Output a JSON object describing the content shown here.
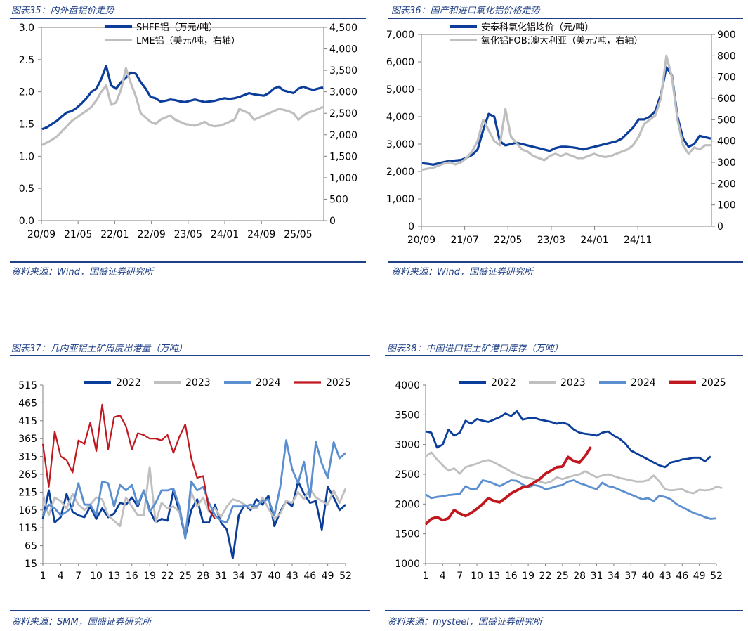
{
  "panels": [
    {
      "title": "图表35：内外盘铝价走势",
      "source": "资料来源：Wind，国盛证券研究所"
    },
    {
      "title": "图表36：国产和进口氧化铝价格走势",
      "source": "资料来源：Wind，国盛证券研究所"
    },
    {
      "title": "图表37：几内亚铝土矿周度出港量（万吨）",
      "source": "资料来源：SMM，国盛证券研究所"
    },
    {
      "title": "图表38：中国进口铝土矿港口库存（万吨）",
      "source": "资料来源：mysteel，国盛证券研究所"
    }
  ],
  "colors": {
    "navy": "#0b3d9a",
    "gray": "#bfbfbf",
    "mid_blue": "#5b8fd0",
    "red": "#c0181e",
    "frame": "#1f3f86"
  },
  "chart_data": [
    {
      "type": "line",
      "title": "内外盘铝价走势",
      "x_ticks": [
        "20/09",
        "21/05",
        "22/01",
        "22/09",
        "23/05",
        "24/01",
        "24/09",
        "25/05"
      ],
      "ylim": [
        0,
        3.0
      ],
      "y_ticks": [
        "0.0",
        "0.5",
        "1.0",
        "1.5",
        "2.0",
        "2.5",
        "3.0"
      ],
      "ylim_right": [
        0,
        4500
      ],
      "y_ticks_right": [
        "0",
        "500",
        "1,000",
        "1,500",
        "2,000",
        "2,500",
        "3,000",
        "3,500",
        "4,000",
        "4,500"
      ],
      "series": [
        {
          "name": "SHFE铝（万元/吨）",
          "axis": "left",
          "color": "#0b3d9a",
          "values": [
            1.42,
            1.45,
            1.5,
            1.55,
            1.62,
            1.68,
            1.7,
            1.75,
            1.82,
            1.9,
            2.0,
            2.05,
            2.2,
            2.4,
            2.1,
            2.05,
            2.15,
            2.22,
            2.3,
            2.28,
            2.15,
            2.05,
            1.92,
            1.9,
            1.85,
            1.86,
            1.88,
            1.87,
            1.85,
            1.84,
            1.86,
            1.88,
            1.86,
            1.84,
            1.85,
            1.86,
            1.88,
            1.9,
            1.89,
            1.9,
            1.92,
            1.95,
            1.98,
            1.96,
            1.95,
            1.94,
            1.98,
            2.05,
            2.08,
            2.02,
            2.0,
            1.98,
            2.05,
            2.08,
            2.05,
            2.03,
            2.05,
            2.07
          ]
        },
        {
          "name": "LME铝（美元/吨，右轴）",
          "axis": "right",
          "color": "#bfbfbf",
          "values": [
            1760,
            1820,
            1880,
            1960,
            2080,
            2200,
            2320,
            2400,
            2480,
            2560,
            2650,
            2800,
            3000,
            3150,
            2700,
            2750,
            3050,
            3550,
            3200,
            2900,
            2500,
            2400,
            2300,
            2250,
            2350,
            2400,
            2450,
            2350,
            2300,
            2250,
            2230,
            2210,
            2250,
            2300,
            2220,
            2200,
            2210,
            2250,
            2300,
            2350,
            2600,
            2550,
            2500,
            2350,
            2400,
            2450,
            2500,
            2550,
            2600,
            2580,
            2550,
            2500,
            2350,
            2450,
            2520,
            2550,
            2600,
            2650
          ]
        }
      ]
    },
    {
      "type": "line",
      "title": "国产和进口氧化铝价格走势",
      "x_ticks": [
        "20/09",
        "21/07",
        "22/05",
        "23/03",
        "24/01",
        "24/11"
      ],
      "ylim": [
        0,
        7000
      ],
      "y_ticks": [
        "0",
        "1,000",
        "2,000",
        "3,000",
        "4,000",
        "5,000",
        "6,000",
        "7,000"
      ],
      "ylim_right": [
        0,
        900
      ],
      "y_ticks_right": [
        "0",
        "100",
        "200",
        "300",
        "400",
        "500",
        "600",
        "700",
        "800",
        "900"
      ],
      "series": [
        {
          "name": "安泰科氧化铝均价（元/吨）",
          "axis": "left",
          "color": "#0b3d9a",
          "values": [
            2300,
            2280,
            2250,
            2300,
            2350,
            2380,
            2400,
            2420,
            2500,
            2600,
            2800,
            3500,
            4100,
            4000,
            3100,
            2950,
            3000,
            3050,
            3000,
            2950,
            2900,
            2850,
            2800,
            2750,
            2850,
            2900,
            2900,
            2880,
            2850,
            2800,
            2850,
            2900,
            2950,
            3000,
            3050,
            3100,
            3200,
            3400,
            3600,
            3900,
            3900,
            4000,
            4200,
            4800,
            5800,
            5500,
            4000,
            3200,
            2900,
            3000,
            3300,
            3250,
            3200
          ]
        },
        {
          "name": "氧化铝FOB:澳大利亚（美元/吨，右轴）",
          "axis": "right",
          "color": "#bfbfbf",
          "values": [
            265,
            270,
            275,
            285,
            295,
            300,
            290,
            300,
            320,
            350,
            400,
            500,
            450,
            400,
            380,
            550,
            420,
            390,
            360,
            350,
            330,
            320,
            310,
            330,
            340,
            330,
            340,
            330,
            320,
            320,
            330,
            340,
            330,
            325,
            330,
            340,
            350,
            360,
            380,
            420,
            480,
            500,
            520,
            600,
            800,
            700,
            500,
            380,
            340,
            370,
            360,
            380,
            380
          ]
        }
      ]
    },
    {
      "type": "line",
      "title": "几内亚铝土矿周度出港量（万吨）",
      "x_ticks": [
        "1",
        "4",
        "7",
        "10",
        "13",
        "16",
        "19",
        "22",
        "25",
        "28",
        "31",
        "34",
        "37",
        "40",
        "43",
        "46",
        "49",
        "52"
      ],
      "ylim": [
        15,
        515
      ],
      "y_ticks": [
        "15",
        "65",
        "115",
        "165",
        "215",
        "265",
        "315",
        "365",
        "415",
        "465",
        "515"
      ],
      "series": [
        {
          "name": "2022",
          "color": "#0b3d9a",
          "values": [
            140,
            220,
            130,
            145,
            210,
            160,
            150,
            145,
            175,
            140,
            170,
            145,
            155,
            185,
            180,
            200,
            175,
            220,
            165,
            130,
            140,
            135,
            220,
            160,
            90,
            165,
            195,
            130,
            130,
            180,
            130,
            110,
            30,
            150,
            180,
            165,
            195,
            180,
            205,
            120,
            160,
            190,
            175,
            245,
            210,
            185,
            190,
            110,
            230,
            200,
            165,
            180
          ]
        },
        {
          "name": "2023",
          "color": "#bfbfbf",
          "values": [
            210,
            150,
            200,
            190,
            170,
            210,
            180,
            165,
            180,
            200,
            195,
            150,
            135,
            120,
            200,
            175,
            150,
            150,
            285,
            130,
            185,
            170,
            175,
            160,
            100,
            215,
            175,
            200,
            160,
            170,
            145,
            175,
            195,
            190,
            180,
            170,
            170,
            200,
            170,
            140,
            155,
            190,
            185,
            215,
            195,
            225,
            200,
            190,
            180,
            220,
            185,
            225
          ]
        },
        {
          "name": "2024",
          "color": "#5b8fd0",
          "values": [
            150,
            180,
            170,
            150,
            160,
            175,
            240,
            180,
            180,
            150,
            245,
            240,
            175,
            235,
            220,
            235,
            180,
            220,
            160,
            185,
            220,
            220,
            225,
            175,
            85,
            245,
            220,
            230,
            185,
            150,
            135,
            130,
            175,
            175,
            175,
            180,
            175,
            190,
            195,
            150,
            230,
            360,
            280,
            240,
            300,
            200,
            355,
            295,
            255,
            355,
            310,
            325
          ]
        },
        {
          "name": "2025",
          "color": "#c0181e",
          "values": [
            350,
            230,
            385,
            315,
            305,
            270,
            360,
            350,
            410,
            330,
            460,
            335,
            425,
            430,
            400,
            335,
            380,
            375,
            365,
            365,
            360,
            375,
            325,
            370,
            405,
            310,
            255,
            260,
            165,
            140
          ]
        }
      ]
    },
    {
      "type": "line",
      "title": "中国进口铝土矿港口库存（万吨）",
      "x_ticks": [
        "1",
        "4",
        "7",
        "10",
        "13",
        "16",
        "19",
        "22",
        "25",
        "28",
        "31",
        "34",
        "37",
        "40",
        "43",
        "46",
        "49",
        "52"
      ],
      "ylim": [
        1000,
        4000
      ],
      "y_ticks": [
        "1000",
        "1500",
        "2000",
        "2500",
        "3000",
        "3500",
        "4000"
      ],
      "series": [
        {
          "name": "2022",
          "color": "#0b3d9a",
          "values": [
            3220,
            3200,
            2950,
            3000,
            3250,
            3150,
            3200,
            3400,
            3350,
            3430,
            3400,
            3380,
            3420,
            3460,
            3520,
            3480,
            3560,
            3420,
            3440,
            3450,
            3420,
            3400,
            3380,
            3350,
            3370,
            3340,
            3250,
            3200,
            3180,
            3170,
            3150,
            3200,
            3220,
            3150,
            3100,
            3020,
            2900,
            2850,
            2800,
            2750,
            2700,
            2650,
            2620,
            2700,
            2720,
            2750,
            2760,
            2780,
            2780,
            2720,
            2800
          ]
        },
        {
          "name": "2023",
          "color": "#bfbfbf",
          "values": [
            2800,
            2870,
            2750,
            2650,
            2560,
            2600,
            2510,
            2620,
            2650,
            2680,
            2720,
            2740,
            2700,
            2650,
            2600,
            2540,
            2500,
            2460,
            2440,
            2420,
            2380,
            2350,
            2380,
            2450,
            2420,
            2450,
            2480,
            2500,
            2550,
            2500,
            2450,
            2480,
            2500,
            2470,
            2440,
            2420,
            2400,
            2380,
            2380,
            2400,
            2480,
            2380,
            2250,
            2230,
            2240,
            2250,
            2200,
            2180,
            2240,
            2230,
            2240,
            2290,
            2270
          ]
        },
        {
          "name": "2024",
          "color": "#5b8fd0",
          "values": [
            2160,
            2100,
            2120,
            2130,
            2150,
            2160,
            2170,
            2300,
            2250,
            2260,
            2400,
            2380,
            2340,
            2300,
            2350,
            2400,
            2390,
            2330,
            2280,
            2320,
            2300,
            2250,
            2270,
            2300,
            2320,
            2380,
            2400,
            2350,
            2320,
            2280,
            2250,
            2360,
            2300,
            2280,
            2240,
            2200,
            2160,
            2120,
            2080,
            2100,
            2050,
            2140,
            2120,
            2080,
            2000,
            1950,
            1900,
            1850,
            1820,
            1780,
            1750,
            1760
          ]
        },
        {
          "name": "2025",
          "color": "#c0181e",
          "values": [
            1660,
            1750,
            1780,
            1730,
            1760,
            1900,
            1840,
            1800,
            1850,
            1920,
            2000,
            2100,
            2050,
            2030,
            2100,
            2180,
            2230,
            2280,
            2300,
            2360,
            2420,
            2510,
            2560,
            2620,
            2630,
            2790,
            2720,
            2700,
            2810,
            2960
          ]
        }
      ]
    }
  ]
}
